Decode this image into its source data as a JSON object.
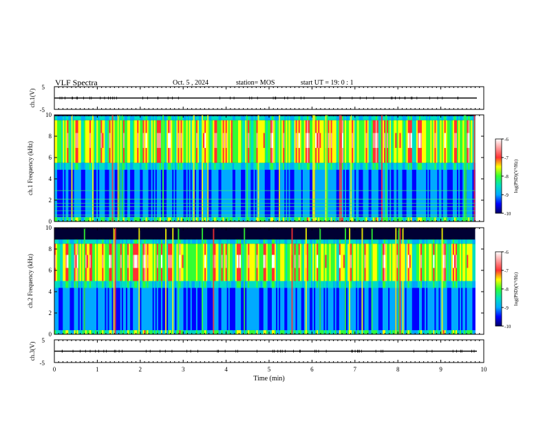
{
  "header": {
    "title": "VLF Spectra",
    "date": "Oct. 5 , 2024",
    "station": "station= MOS",
    "start": "start  UT =   19: 0  : 1"
  },
  "colorbar": {
    "stops": [
      "#000066",
      "#0000ff",
      "#00aaff",
      "#00e0c0",
      "#33ff33",
      "#ffff00",
      "#ff3333",
      "#ff9999",
      "#ffffff"
    ]
  },
  "chart_data": [
    {
      "type": "line",
      "name": "ch1-waveform",
      "ylabel": "ch.1(V)",
      "ylim": [
        -5,
        5
      ],
      "yticks": [
        "5",
        "-5"
      ],
      "x": [
        0,
        10
      ],
      "y": [
        0,
        0
      ],
      "xlim": [
        0,
        10
      ]
    },
    {
      "type": "heatmap",
      "name": "ch1-spectrogram",
      "ylabel": "ch.1  Frequency (kHz)",
      "ylim": [
        0,
        10
      ],
      "yticks": [
        "0",
        "2",
        "4",
        "6",
        "8",
        "10"
      ],
      "xlim": [
        0,
        10
      ],
      "data_end_min": 9.8,
      "band_khz": [
        5.5,
        9.5
      ],
      "narrowband_lines_khz": [
        0.4,
        0.6,
        1.0,
        1.4,
        1.7,
        2.1,
        2.9
      ],
      "colorbar": {
        "label": "log(PSD)(V²/Hz)",
        "range": [
          -10,
          -6
        ],
        "ticks": [
          "-6",
          "-7",
          "-8",
          "-9",
          "-10"
        ]
      }
    },
    {
      "type": "heatmap",
      "name": "ch2-spectrogram",
      "ylabel": "ch.2  Frequency (kHz)",
      "ylim": [
        0,
        10
      ],
      "yticks": [
        "0",
        "2",
        "4",
        "6",
        "8",
        "10"
      ],
      "xlim": [
        0,
        10
      ],
      "data_end_min": 9.8,
      "band_khz": [
        5.0,
        8.5
      ],
      "narrowband_lines_khz": [],
      "colorbar": {
        "label": "log(PSD)(V²/Hz)",
        "range": [
          -10,
          -6
        ],
        "ticks": [
          "-6",
          "-7",
          "-8",
          "-9",
          "-10"
        ]
      }
    },
    {
      "type": "line",
      "name": "ch3-waveform",
      "ylabel": "ch.3(V)",
      "ylim": [
        -5,
        5
      ],
      "yticks": [
        "5",
        "-5"
      ],
      "x": [
        0,
        10
      ],
      "y": [
        0,
        0
      ],
      "xlim": [
        0,
        10
      ]
    },
    {
      "type": "axis",
      "name": "time-axis",
      "xlabel": "Time  (min)",
      "xlim": [
        0,
        10
      ],
      "xticks": [
        "0",
        "1",
        "2",
        "3",
        "4",
        "5",
        "6",
        "7",
        "8",
        "9",
        "10"
      ]
    }
  ]
}
